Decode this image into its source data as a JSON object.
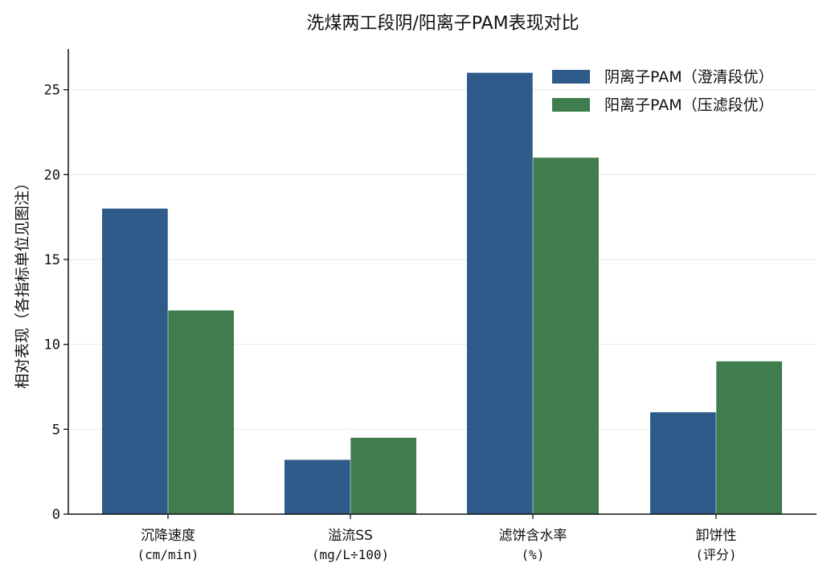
{
  "chart_data": {
    "type": "bar",
    "title": "洗煤两工段阴/阳离子PAM表现对比",
    "ylabel": "相对表现（各指标单位见图注）",
    "xlabel": "",
    "ylim": [
      0,
      27.4
    ],
    "yticks": [
      0,
      5,
      10,
      15,
      20,
      25
    ],
    "grid": true,
    "legend_position": "top-right",
    "categories": [
      {
        "name": "沉降速度",
        "unit": "(cm/min)"
      },
      {
        "name": "溢流SS",
        "unit": "(mg/L÷100)"
      },
      {
        "name": "滤饼含水率",
        "unit": "(%)"
      },
      {
        "name": "卸饼性",
        "unit": "(评分)"
      }
    ],
    "series": [
      {
        "name": "阴离子PAM（澄清段优）",
        "color": "#2e5b8a",
        "values": [
          18,
          3.2,
          26,
          6
        ]
      },
      {
        "name": "阳离子PAM（压滤段优）",
        "color": "#3f7d4f",
        "values": [
          12,
          4.5,
          21,
          9
        ]
      }
    ]
  }
}
